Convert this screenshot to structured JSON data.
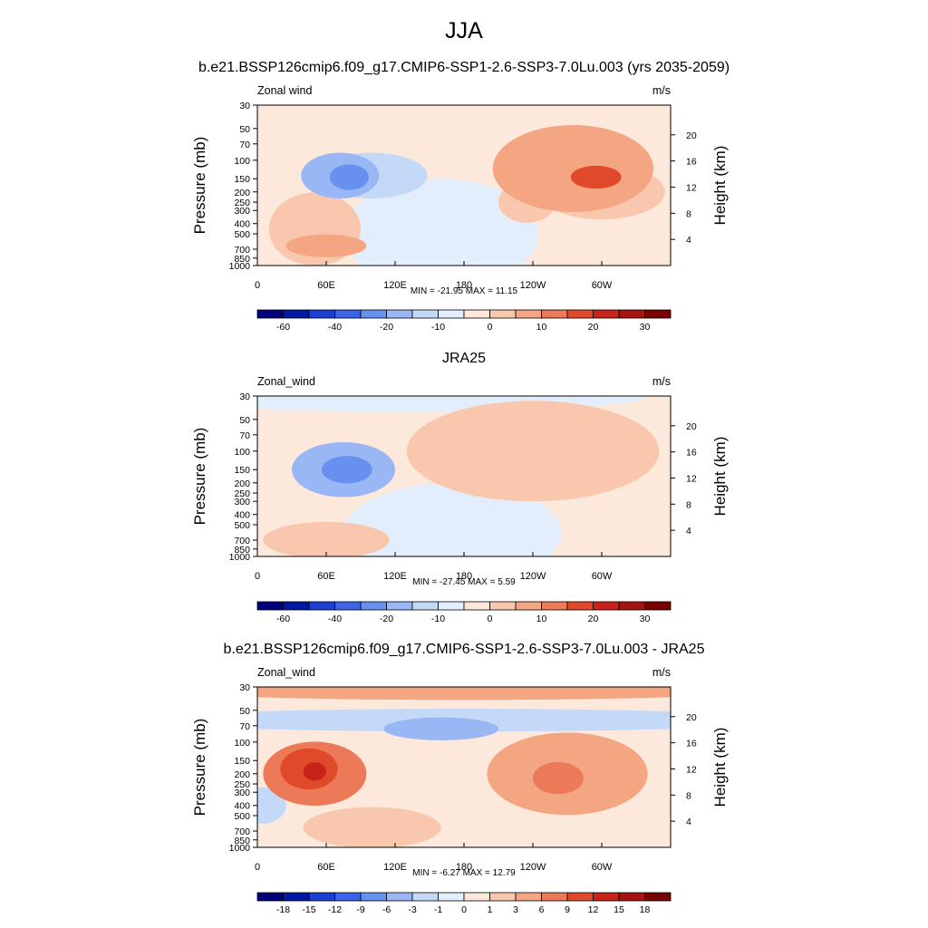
{
  "page": {
    "title": "JJA"
  },
  "chart_data": [
    {
      "type": "heatmap",
      "title": "b.e21.BSSP126cmip6.f09_g17.CMIP6-SSP1-2.6-SSP3-7.0Lu.003 (yrs 2035-2059)",
      "left_label": "Zonal wind",
      "units": "m/s",
      "ylabel": "Pressure (mb)",
      "y2label": "Height (km)",
      "x_ticks": [
        "0",
        "60E",
        "120E",
        "180",
        "120W",
        "60W"
      ],
      "y_ticks": [
        "30",
        "50",
        "70",
        "100",
        "150",
        "200",
        "250",
        "300",
        "400",
        "500",
        "700",
        "850",
        "1000"
      ],
      "height_ticks": [
        "4",
        "8",
        "12",
        "16",
        "20"
      ],
      "stats": "MIN = -21.95  MAX =  11.15",
      "colorbar_ticks": [
        "-60",
        "-40",
        "-20",
        "-10",
        "0",
        "10",
        "20",
        "30"
      ],
      "colorbar_colors": [
        "#00007f",
        "#0018a4",
        "#1a3fd3",
        "#3c63e8",
        "#6890f0",
        "#99b6f5",
        "#c4d8f8",
        "#e3eefc",
        "#fde7d9",
        "#f9c7ad",
        "#f4a582",
        "#ec7a58",
        "#e04a2b",
        "#c8231a",
        "#a51413",
        "#780000"
      ],
      "field": {
        "background": "#fde9dc",
        "positive": [
          {
            "lon": 275,
            "lev": 120,
            "rlon": 70,
            "rlev": 0.95,
            "v": 10
          },
          {
            "lon": 295,
            "lev": 145,
            "rlon": 22,
            "rlev": 0.25,
            "v": 15
          },
          {
            "lon": 300,
            "lev": 200,
            "rlon": 55,
            "rlev": 0.6,
            "v": 5
          },
          {
            "lon": 235,
            "lev": 250,
            "rlon": 25,
            "rlev": 0.45,
            "v": 5
          },
          {
            "lon": 100,
            "lev": 140,
            "rlon": 48,
            "rlev": 0.5,
            "v": -8
          },
          {
            "lon": 50,
            "lev": 450,
            "rlon": 40,
            "rlev": 0.8,
            "v": 5
          },
          {
            "lon": 60,
            "lev": 650,
            "rlon": 35,
            "rlev": 0.25,
            "v": 8
          }
        ],
        "negative": [
          {
            "lon": 72,
            "lev": 140,
            "rlon": 34,
            "rlev": 0.5,
            "v": -16
          },
          {
            "lon": 80,
            "lev": 145,
            "rlon": 17,
            "rlev": 0.28,
            "v": -22
          },
          {
            "lon": 160,
            "lev": 500,
            "rlon": 85,
            "rlev": 1.2,
            "v": -3
          }
        ]
      }
    },
    {
      "type": "heatmap",
      "title": "JRA25",
      "left_label": "Zonal_wind",
      "units": "m/s",
      "ylabel": "Pressure (mb)",
      "y2label": "Height (km)",
      "x_ticks": [
        "0",
        "60E",
        "120E",
        "180",
        "120W",
        "60W"
      ],
      "y_ticks": [
        "30",
        "50",
        "70",
        "100",
        "150",
        "200",
        "250",
        "300",
        "400",
        "500",
        "700",
        "850",
        "1000"
      ],
      "height_ticks": [
        "4",
        "8",
        "12",
        "16",
        "20"
      ],
      "stats": "MIN = -27.45  MAX =   5.59",
      "colorbar_ticks": [
        "-60",
        "-40",
        "-20",
        "-10",
        "0",
        "10",
        "20",
        "30"
      ],
      "colorbar_colors": [
        "#00007f",
        "#0018a4",
        "#1a3fd3",
        "#3c63e8",
        "#6890f0",
        "#99b6f5",
        "#c4d8f8",
        "#e3eefc",
        "#fde7d9",
        "#f9c7ad",
        "#f4a582",
        "#ec7a58",
        "#e04a2b",
        "#c8231a",
        "#a51413",
        "#780000"
      ],
      "field": {
        "background": "#fde9dc",
        "positive": [
          {
            "lon": 240,
            "lev": 100,
            "rlon": 110,
            "rlev": 1.1,
            "v": 5
          },
          {
            "lon": 60,
            "lev": 700,
            "rlon": 55,
            "rlev": 0.4,
            "v": 4
          }
        ],
        "negative": [
          {
            "lon": 120,
            "lev": 30,
            "rlon": 220,
            "rlev": 0.35,
            "v": -3
          },
          {
            "lon": 75,
            "lev": 150,
            "rlon": 45,
            "rlev": 0.6,
            "v": -14
          },
          {
            "lon": 78,
            "lev": 150,
            "rlon": 22,
            "rlev": 0.3,
            "v": -27
          },
          {
            "lon": 170,
            "lev": 600,
            "rlon": 95,
            "rlev": 1.1,
            "v": -3
          }
        ]
      }
    },
    {
      "type": "heatmap",
      "title": "b.e21.BSSP126cmip6.f09_g17.CMIP6-SSP1-2.6-SSP3-7.0Lu.003 - JRA25",
      "left_label": "Zonal_wind",
      "units": "m/s",
      "ylabel": "Pressure (mb)",
      "y2label": "Height (km)",
      "x_ticks": [
        "0",
        "60E",
        "120E",
        "180",
        "120W",
        "60W"
      ],
      "y_ticks": [
        "30",
        "50",
        "70",
        "100",
        "150",
        "200",
        "250",
        "300",
        "400",
        "500",
        "700",
        "850",
        "1000"
      ],
      "height_ticks": [
        "4",
        "8",
        "12",
        "16",
        "20"
      ],
      "stats": "MIN =  -6.27  MAX =  12.79",
      "colorbar_ticks": [
        "-18",
        "-15",
        "-12",
        "-9",
        "-6",
        "-3",
        "-1",
        "0",
        "1",
        "3",
        "6",
        "9",
        "12",
        "15",
        "18"
      ],
      "colorbar_colors": [
        "#00007f",
        "#0018a4",
        "#1a3fd3",
        "#3c63e8",
        "#6890f0",
        "#99b6f5",
        "#c4d8f8",
        "#e3eefc",
        "#fde7d9",
        "#f9c7ad",
        "#f4a582",
        "#ec7a58",
        "#e04a2b",
        "#c8231a",
        "#a51413",
        "#780000"
      ],
      "field": {
        "background": "#fde9dc",
        "positive": [
          {
            "lon": 180,
            "lev": 32,
            "rlon": 260,
            "rlev": 0.22,
            "v": 6
          },
          {
            "lon": 50,
            "lev": 200,
            "rlon": 45,
            "rlev": 0.7,
            "v": 8
          },
          {
            "lon": 45,
            "lev": 180,
            "rlon": 25,
            "rlev": 0.45,
            "v": 11
          },
          {
            "lon": 50,
            "lev": 190,
            "rlon": 10,
            "rlev": 0.2,
            "v": 13
          },
          {
            "lon": 270,
            "lev": 200,
            "rlon": 70,
            "rlev": 0.9,
            "v": 5
          },
          {
            "lon": 262,
            "lev": 220,
            "rlon": 22,
            "rlev": 0.35,
            "v": 7
          },
          {
            "lon": 100,
            "lev": 650,
            "rlon": 60,
            "rlev": 0.45,
            "v": 3
          }
        ],
        "negative": [
          {
            "lon": 180,
            "lev": 62,
            "rlon": 280,
            "rlev": 0.25,
            "v": -3
          },
          {
            "lon": 160,
            "lev": 75,
            "rlon": 50,
            "rlev": 0.25,
            "v": -6
          },
          {
            "lon": 5,
            "lev": 400,
            "rlon": 20,
            "rlev": 0.4,
            "v": -2
          }
        ]
      }
    }
  ]
}
